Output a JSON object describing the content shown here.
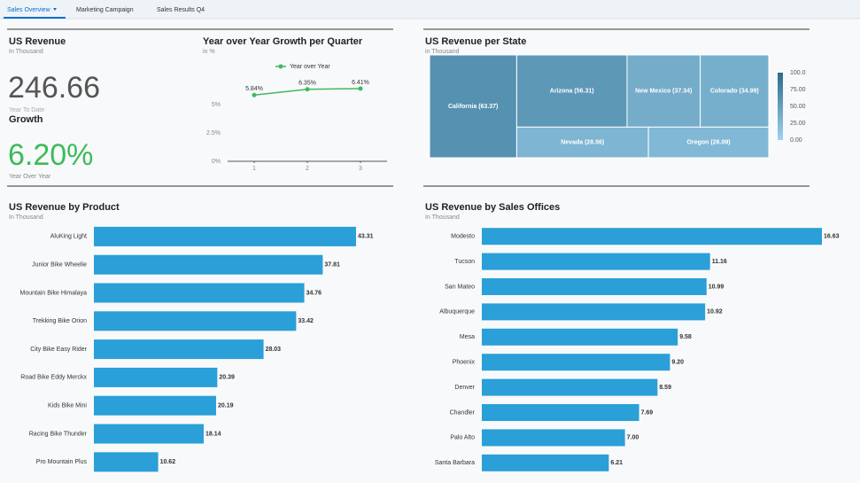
{
  "tabs": [
    "Sales Overview",
    "Marketing Campaign",
    "Sales Results Q4"
  ],
  "kpi": {
    "title": "US Revenue",
    "subtitle": "In Thousand",
    "value": "246.66",
    "caption": "Year To Date",
    "growth_title": "Growth",
    "growth_value": "6.20%",
    "growth_caption": "Year Over Year"
  },
  "chart_data": [
    {
      "type": "line",
      "title": "Year over Year Growth per Quarter",
      "subtitle": "in %",
      "x": [
        1,
        2,
        3
      ],
      "xlim": [
        0.5,
        3.5
      ],
      "xticks": [
        1,
        2,
        3
      ],
      "ylim": [
        0,
        7.5
      ],
      "yticks": [
        {
          "value": 0,
          "label": "0%"
        },
        {
          "value": 2.5,
          "label": "2.5%"
        },
        {
          "value": 5,
          "label": "5%"
        }
      ],
      "series": [
        {
          "name": "Year over Year",
          "color": "#3dbb5a",
          "values": [
            5.84,
            6.35,
            6.41
          ],
          "value_labels": [
            "5.84%",
            "6.35%",
            "6.41%"
          ]
        }
      ]
    },
    {
      "type": "treemap",
      "title": "US Revenue per State",
      "subtitle": "in Thousand",
      "categories": [
        "California",
        "Arizona",
        "New Mexico",
        "Colorado",
        "Nevada",
        "Oregon"
      ],
      "values": [
        63.37,
        56.31,
        37.34,
        34.99,
        28.56,
        26.09
      ],
      "value_labels": [
        "California (63.37)",
        "Arizona (56.31)",
        "New Mexico (37.34)",
        "Colorado (34.99)",
        "Nevada (28.56)",
        "Oregon (26.09)"
      ],
      "color_scale": {
        "range": [
          0,
          100
        ],
        "colors": [
          "#9fd3ef",
          "#2b6b8c"
        ],
        "ticks": [
          {
            "value": 100,
            "label": "100.0"
          },
          {
            "value": 75,
            "label": "75.00"
          },
          {
            "value": 50,
            "label": "50.00"
          },
          {
            "value": 25,
            "label": "25.00"
          },
          {
            "value": 0,
            "label": "0.00"
          }
        ]
      }
    },
    {
      "type": "bar",
      "title": "US Revenue by Product",
      "subtitle": "In Thousand",
      "color": "#2a9fd8",
      "categories": [
        "AluKing Light",
        "Junior Bike Wheelie",
        "Mountain Bike Himalaya",
        "Trekking Bike Orion",
        "City Bike Easy Rider",
        "Road Bike Eddy Merckx",
        "Kids Bike Mini",
        "Racing Bike Thunder",
        "Pro Mountain Plus"
      ],
      "values": [
        43.31,
        37.81,
        34.76,
        33.42,
        28.03,
        20.39,
        20.19,
        18.14,
        10.62
      ]
    },
    {
      "type": "bar",
      "title": "US Revenue by Sales Offices",
      "subtitle": "In Thousand",
      "color": "#2a9fd8",
      "categories": [
        "Modesto",
        "Tucson",
        "San Mateo",
        "Albuquerque",
        "Mesa",
        "Phoenix",
        "Denver",
        "Chandler",
        "Palo Alto",
        "Santa Barbara"
      ],
      "values": [
        16.63,
        11.16,
        10.99,
        10.92,
        9.58,
        9.2,
        8.59,
        7.69,
        7.0,
        6.21
      ],
      "value_labels": [
        "16.63",
        "11.16",
        "10.99",
        "10.92",
        "9.58",
        "9.20",
        "8.59",
        "7.69",
        "7.00",
        "6.21"
      ]
    }
  ]
}
